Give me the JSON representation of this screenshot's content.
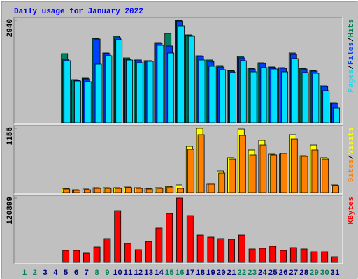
{
  "chart_data": [
    {
      "type": "bar",
      "title": "Daily usage for January 2022",
      "categories": [
        "1",
        "2",
        "3",
        "4",
        "5",
        "6",
        "7",
        "8",
        "9",
        "10",
        "11",
        "12",
        "13",
        "14",
        "15",
        "16",
        "17",
        "18",
        "19",
        "20",
        "21",
        "22",
        "23",
        "24",
        "25",
        "26",
        "27",
        "28",
        "29",
        "30",
        "31"
      ],
      "ylim": [
        0,
        2940
      ],
      "yticks": [
        2940
      ],
      "legend_separator": "/",
      "series": [
        {
          "name": "Pages",
          "color": "#00e0ff",
          "values": [
            null,
            null,
            null,
            null,
            1780,
            1200,
            1180,
            1680,
            1920,
            2380,
            1800,
            1720,
            1760,
            2220,
            2000,
            2780,
            2480,
            1800,
            1620,
            1520,
            1440,
            1780,
            1460,
            1580,
            1540,
            1460,
            1840,
            1440,
            1420,
            920,
            420
          ]
        },
        {
          "name": "Files",
          "color": "#0040ff",
          "values": [
            null,
            null,
            null,
            null,
            1820,
            1220,
            1260,
            2400,
            1980,
            2440,
            1820,
            1800,
            1780,
            2280,
            2200,
            2920,
            2500,
            1900,
            1760,
            1600,
            1480,
            1860,
            1540,
            1700,
            1580,
            1560,
            1960,
            1540,
            1480,
            1040,
            560
          ]
        },
        {
          "name": "Hits",
          "color": "#00805c",
          "values": [
            null,
            null,
            null,
            null,
            1980,
            1240,
            1280,
            2420,
            2000,
            2480,
            1860,
            1800,
            1780,
            2300,
            2560,
            2940,
            2520,
            1920,
            1800,
            1640,
            1500,
            1900,
            1560,
            1720,
            1600,
            1580,
            2000,
            1560,
            1500,
            1060,
            580
          ]
        }
      ]
    },
    {
      "type": "bar",
      "categories": [
        "1",
        "2",
        "3",
        "4",
        "5",
        "6",
        "7",
        "8",
        "9",
        "10",
        "11",
        "12",
        "13",
        "14",
        "15",
        "16",
        "17",
        "18",
        "19",
        "20",
        "21",
        "22",
        "23",
        "24",
        "25",
        "26",
        "27",
        "28",
        "29",
        "30",
        "31"
      ],
      "ylim": [
        0,
        1155
      ],
      "yticks": [
        1155
      ],
      "legend_separator": "/",
      "series": [
        {
          "name": "Sites",
          "color": "#ff8000",
          "values": [
            null,
            null,
            null,
            null,
            63,
            38,
            50,
            75,
            75,
            75,
            88,
            75,
            63,
            75,
            100,
            75,
            778,
            1042,
            151,
            351,
            602,
            1029,
            678,
            853,
            678,
            703,
            966,
            653,
            766,
            602,
            126
          ]
        },
        {
          "name": "Visits",
          "color": "#ffff00",
          "values": [
            null,
            null,
            null,
            null,
            75,
            50,
            63,
            88,
            88,
            88,
            100,
            88,
            75,
            88,
            113,
            138,
            828,
            1155,
            151,
            389,
            628,
            1142,
            766,
            941,
            690,
            690,
            1042,
            665,
            853,
            628,
            138
          ]
        }
      ]
    },
    {
      "type": "bar",
      "categories": [
        "1",
        "2",
        "3",
        "4",
        "5",
        "6",
        "7",
        "8",
        "9",
        "10",
        "11",
        "12",
        "13",
        "14",
        "15",
        "16",
        "17",
        "18",
        "19",
        "20",
        "21",
        "22",
        "23",
        "24",
        "25",
        "26",
        "27",
        "28",
        "29",
        "30",
        "31"
      ],
      "category_colors": [
        "#00805c",
        "#00805c",
        "#000080",
        "#000080",
        "#000080",
        "#000080",
        "#000080",
        "#00805c",
        "#00805c",
        "#000080",
        "#000080",
        "#000080",
        "#000080",
        "#000080",
        "#00805c",
        "#00805c",
        "#000080",
        "#000080",
        "#000080",
        "#000080",
        "#000080",
        "#00805c",
        "#00805c",
        "#000080",
        "#000080",
        "#000080",
        "#000080",
        "#000080",
        "#00805c",
        "#00805c",
        "#000080"
      ],
      "ylim": [
        0,
        120899
      ],
      "yticks": [
        120899
      ],
      "legend_separator": "/",
      "series": [
        {
          "name": "KBytes",
          "color": "#ff0000",
          "values": [
            null,
            null,
            null,
            null,
            22300,
            22300,
            17100,
            28900,
            44700,
            97200,
            35500,
            23700,
            39400,
            64400,
            92000,
            120899,
            88000,
            51200,
            47300,
            44700,
            43400,
            51200,
            25000,
            26300,
            30200,
            22300,
            27600,
            25000,
            19700,
            19700,
            10500
          ]
        }
      ]
    }
  ]
}
